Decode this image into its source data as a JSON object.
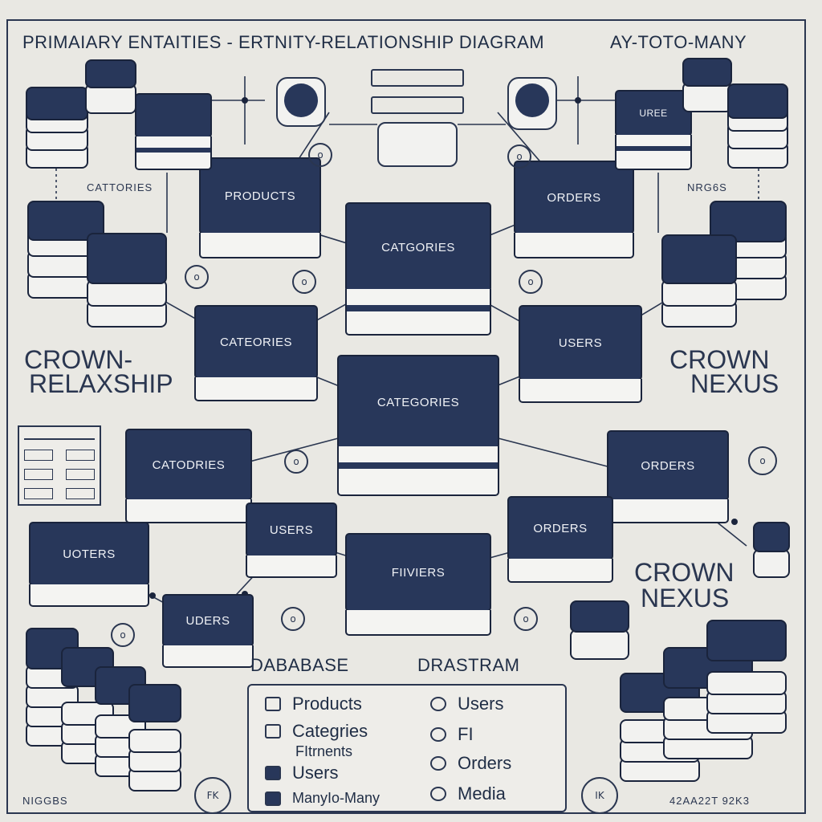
{
  "header": {
    "title_left": "PRIMAIARY ENTAITIES - ERTNITY-RELATIONSHIP DIAGRAM",
    "title_right": "AY-TOTO-MANY"
  },
  "side_labels": {
    "left_big_1": "CROWN-",
    "left_big_2": "RELAXSHIP",
    "right_big_1": "CROWN",
    "right_big_2": "NEXUS",
    "right_big_3": "CROWN",
    "right_big_4": "NEXUS",
    "small_left": "CATTORIES",
    "small_right": "NRG6S",
    "bottom_left": "NIGGBS",
    "bottom_right": "42AA22T  92K3"
  },
  "entities": {
    "products": "PRODUCTS",
    "orders_top": "ORDERS",
    "categories_center_top": "CATGORIES",
    "categories_left": "CATEORIES",
    "users_right": "USERS",
    "categories_center": "CATEGORIES",
    "categories_lower_left": "CATODRIES",
    "orders_right": "ORDERS",
    "users_mid": "USERS",
    "uoters": "UOTERS",
    "orders_mid": "ORDERS",
    "fieters": "FIIVIERS",
    "uders": "UDERS",
    "uree": "UREE"
  },
  "footer": {
    "database": "DABABASE",
    "diagram": "DRASTRAM"
  },
  "legend": {
    "items": [
      {
        "label": "Products"
      },
      {
        "label": "Categries"
      },
      {
        "label": "FItrnents"
      },
      {
        "label": "Users"
      },
      {
        "label": "ManyIo-Many"
      },
      {
        "label": "Users"
      },
      {
        "label": "FI"
      },
      {
        "label": "Orders"
      },
      {
        "label": "Media"
      }
    ]
  },
  "colors": {
    "background": "#e9e8e3",
    "entity_fill": "#28375a",
    "entity_side": "#f4f4f2",
    "line": "#2a3650"
  }
}
